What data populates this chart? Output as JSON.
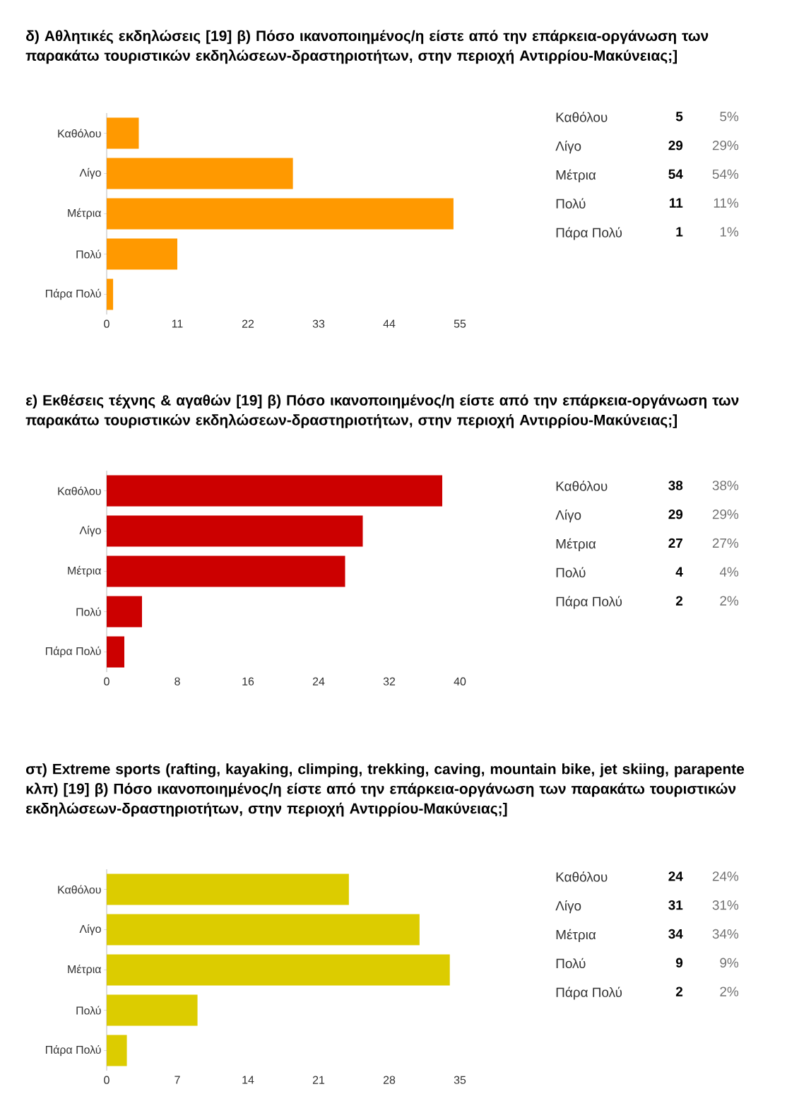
{
  "chart_data": [
    {
      "type": "bar",
      "orientation": "horizontal",
      "title": "δ) Αθλητικές εκδηλώσεις [19] β) Πόσο ικανοποιημένος/η είστε από την επάρκεια-οργάνωση των παρακάτω τουριστικών εκδηλώσεων-δραστηριοτήτων, στην περιοχή Αντιρρίου-Μακύνειας;]",
      "categories": [
        "Καθόλου",
        "Λίγο",
        "Μέτρια",
        "Πολύ",
        "Πάρα Πολύ"
      ],
      "values": [
        5,
        29,
        54,
        11,
        1
      ],
      "color": "#ff9900",
      "xlim": [
        0,
        55
      ],
      "xticks": [
        0,
        11,
        22,
        33,
        44,
        55
      ]
    },
    {
      "type": "other",
      "annotations": [
        "Καθόλου",
        "5",
        "5%",
        "Λίγο",
        "29",
        "29%",
        "Μέτρια",
        "54",
        "54%",
        "Πολύ",
        "11",
        "11%",
        "Πάρα Πολύ",
        "1",
        "1%"
      ]
    },
    {
      "type": "bar",
      "orientation": "horizontal",
      "title": "ε) Εκθέσεις τέχνης & αγαθών [19] β) Πόσο ικανοποιημένος/η είστε από την επάρκεια-οργάνωση των παρακάτω τουριστικών εκδηλώσεων-δραστηριοτήτων, στην περιοχή Αντιρρίου-Μακύνειας;]",
      "categories": [
        "Καθόλου",
        "Λίγο",
        "Μέτρια",
        "Πολύ",
        "Πάρα Πολύ"
      ],
      "values": [
        38,
        29,
        27,
        4,
        2
      ],
      "color": "#cc0000",
      "xlim": [
        0,
        40
      ],
      "xticks": [
        0,
        8,
        16,
        24,
        32,
        40
      ]
    },
    {
      "type": "other",
      "annotations": [
        "Καθόλου",
        "38",
        "38%",
        "Λίγο",
        "29",
        "29%",
        "Μέτρια",
        "27",
        "27%",
        "Πολύ",
        "4",
        "4%",
        "Πάρα Πολύ",
        "2",
        "2%"
      ]
    },
    {
      "type": "bar",
      "orientation": "horizontal",
      "title": "στ) Extreme sports (rafting, kayaking, climping, trekking, caving, mountain bike, jet skiing, parapente κλπ) [19] β) Πόσο ικανοποιημένος/η είστε από την επάρκεια-οργάνωση των παρακάτω τουριστικών εκδηλώσεων-δραστηριοτήτων, στην περιοχή Αντιρρίου-Μακύνειας;]",
      "categories": [
        "Καθόλου",
        "Λίγο",
        "Μέτρια",
        "Πολύ",
        "Πάρα Πολύ"
      ],
      "values": [
        24,
        31,
        34,
        9,
        2
      ],
      "color": "#dccc00",
      "xlim": [
        0,
        35
      ],
      "xticks": [
        0,
        7,
        14,
        21,
        28,
        35
      ]
    },
    {
      "type": "other",
      "annotations": [
        "Καθόλου",
        "24",
        "24%",
        "Λίγο",
        "31",
        "31%",
        "Μέτρια",
        "34",
        "34%",
        "Πολύ",
        "9",
        "9%",
        "Πάρα Πολύ",
        "2",
        "2%"
      ]
    }
  ]
}
